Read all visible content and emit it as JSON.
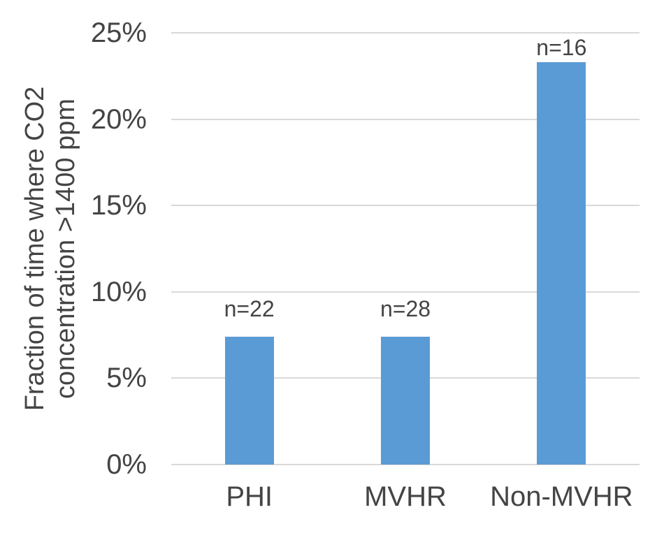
{
  "chart_data": {
    "type": "bar",
    "title": "",
    "categories": [
      "PHI",
      "MVHR",
      "Non-MVHR"
    ],
    "values": [
      7.4,
      7.4,
      23.3
    ],
    "bar_labels": [
      "n=22",
      "n=28",
      "n=16"
    ],
    "ylabel_lines": [
      "Fraction of time where CO2",
      "concentration >1400 ppm"
    ],
    "yticks": [
      "25%",
      "20%",
      "15%",
      "10%",
      "5%",
      "0%"
    ],
    "ytick_values": [
      25,
      20,
      15,
      10,
      5,
      0
    ],
    "ylim": [
      0,
      25
    ],
    "grid": true,
    "legend": "none",
    "bar_color": "#5b9bd5",
    "gridline_color": "#d9d9d9",
    "text_color": "#444444"
  }
}
